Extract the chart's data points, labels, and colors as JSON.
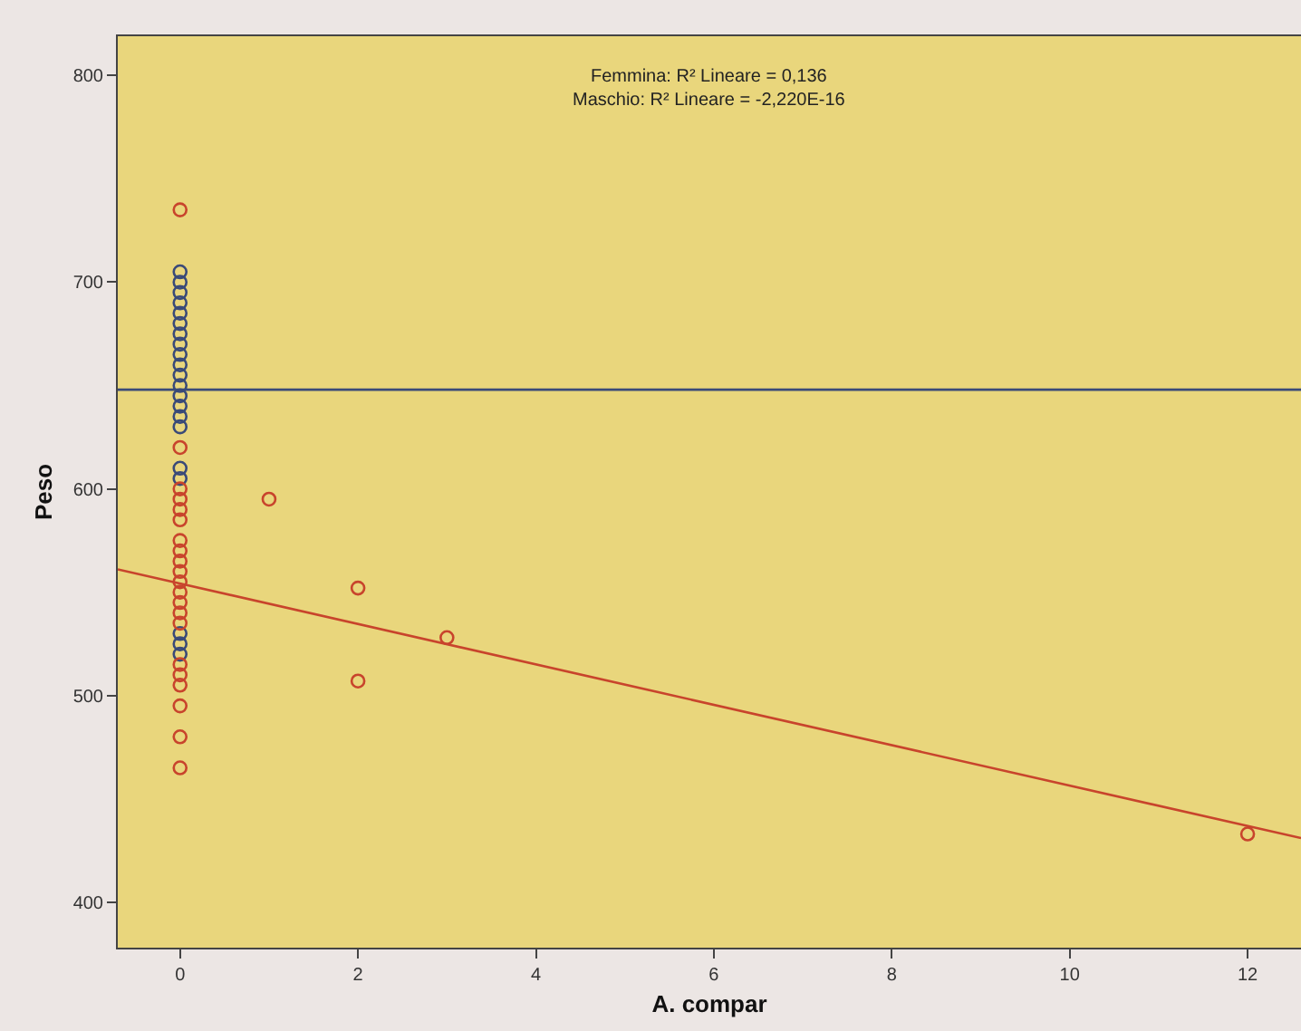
{
  "chart_data": {
    "type": "scatter",
    "xlabel": "A. compar",
    "ylabel": "Peso",
    "annotations": [
      "Femmina: R² Lineare = 0,136\nMaschio: R² Lineare = -2,220E-16"
    ],
    "series": [
      {
        "color": "#3a4a78",
        "x": [
          0,
          0,
          0,
          0,
          0,
          0,
          0,
          0,
          0,
          0,
          0,
          0,
          0,
          0,
          0,
          0,
          0,
          0,
          0,
          0,
          0
        ],
        "values": [
          705,
          700,
          695,
          690,
          685,
          680,
          675,
          670,
          665,
          660,
          655,
          650,
          645,
          640,
          635,
          630,
          610,
          605,
          530,
          525,
          520
        ]
      },
      {
        "color": "#c8442c",
        "x": [
          0,
          0,
          0,
          0,
          0,
          0,
          0,
          0,
          0,
          0,
          0,
          0,
          0,
          0,
          0,
          0,
          0,
          0,
          0,
          0,
          0,
          1,
          2,
          2,
          3,
          12
        ],
        "values": [
          735,
          620,
          600,
          595,
          590,
          585,
          575,
          570,
          565,
          560,
          555,
          550,
          545,
          540,
          535,
          515,
          510,
          505,
          495,
          480,
          465,
          595,
          552,
          507,
          528,
          433
        ]
      },
      {
        "type": "line",
        "marker": "none",
        "color": "#3a4a78",
        "x": [
          -0.7,
          12.6
        ],
        "values": [
          648,
          648
        ]
      },
      {
        "type": "line",
        "marker": "none",
        "color": "#c8442c",
        "x": [
          -0.7,
          12.6
        ],
        "values": [
          561,
          431
        ]
      }
    ],
    "xlim": [
      -0.7,
      12.6
    ],
    "ylim": [
      378,
      819
    ],
    "xticks": [
      0,
      2,
      4,
      6,
      8,
      10,
      12
    ],
    "yticks": [
      400,
      500,
      600,
      700,
      800
    ],
    "grid": false,
    "marker": "circle"
  }
}
